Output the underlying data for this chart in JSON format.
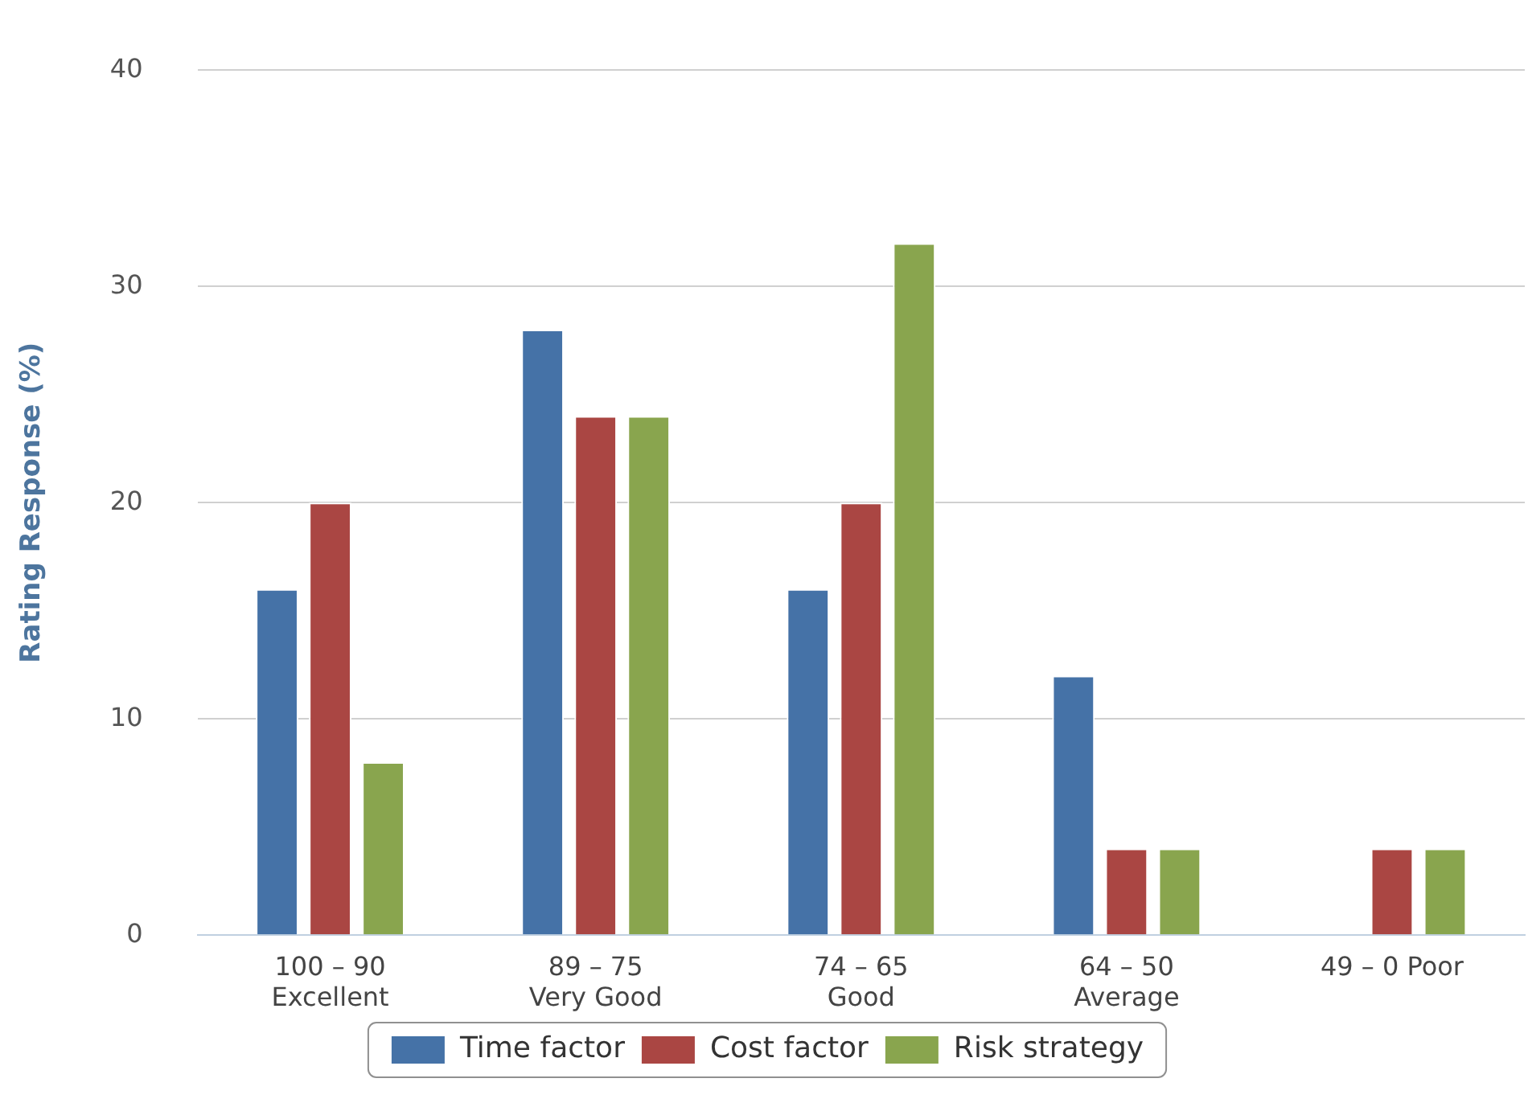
{
  "chart_data": {
    "type": "bar",
    "ylabel": "Rating Response (%)",
    "categories": [
      "100 – 90\nExcellent",
      "89 – 75\nVery Good",
      "74 – 65\nGood",
      "64 – 50\nAverage",
      "49 – 0 Poor"
    ],
    "series": [
      {
        "name": "Time factor",
        "color": "#4572a7",
        "values": [
          16,
          28,
          16,
          12,
          0
        ]
      },
      {
        "name": "Cost factor",
        "color": "#aa4643",
        "values": [
          20,
          24,
          20,
          4,
          4
        ]
      },
      {
        "name": "Risk strategy",
        "color": "#89a54e",
        "values": [
          8,
          24,
          32,
          4,
          4
        ]
      }
    ],
    "ylim": [
      0,
      40
    ],
    "yticks": [
      0,
      10,
      20,
      30,
      40
    ],
    "grid": "y",
    "legend": "bottom"
  }
}
